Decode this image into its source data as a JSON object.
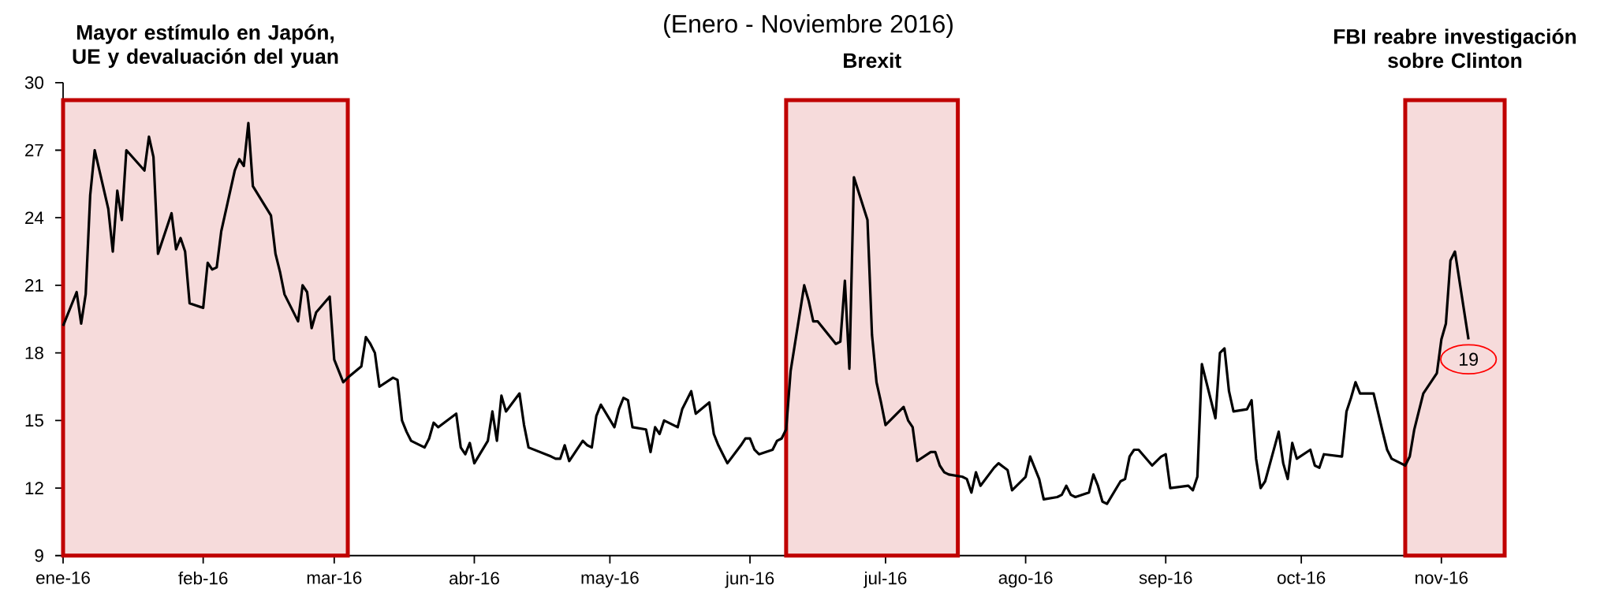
{
  "chart_data": {
    "type": "line",
    "subtitle": "(Enero - Noviembre 2016)",
    "x": [
      "2016-01-01",
      "2016-01-04",
      "2016-01-05",
      "2016-01-06",
      "2016-01-07",
      "2016-01-08",
      "2016-01-11",
      "2016-01-12",
      "2016-01-13",
      "2016-01-14",
      "2016-01-15",
      "2016-01-19",
      "2016-01-20",
      "2016-01-21",
      "2016-01-22",
      "2016-01-25",
      "2016-01-26",
      "2016-01-27",
      "2016-01-28",
      "2016-01-29",
      "2016-02-01",
      "2016-02-02",
      "2016-02-03",
      "2016-02-04",
      "2016-02-05",
      "2016-02-08",
      "2016-02-09",
      "2016-02-10",
      "2016-02-11",
      "2016-02-12",
      "2016-02-16",
      "2016-02-17",
      "2016-02-18",
      "2016-02-19",
      "2016-02-22",
      "2016-02-23",
      "2016-02-24",
      "2016-02-25",
      "2016-02-26",
      "2016-02-29",
      "2016-03-01",
      "2016-03-02",
      "2016-03-03",
      "2016-03-04",
      "2016-03-07",
      "2016-03-08",
      "2016-03-09",
      "2016-03-10",
      "2016-03-11",
      "2016-03-14",
      "2016-03-15",
      "2016-03-16",
      "2016-03-17",
      "2016-03-18",
      "2016-03-21",
      "2016-03-22",
      "2016-03-23",
      "2016-03-24",
      "2016-03-28",
      "2016-03-29",
      "2016-03-30",
      "2016-03-31",
      "2016-04-01",
      "2016-04-04",
      "2016-04-05",
      "2016-04-06",
      "2016-04-07",
      "2016-04-08",
      "2016-04-11",
      "2016-04-12",
      "2016-04-13",
      "2016-04-18",
      "2016-04-19",
      "2016-04-20",
      "2016-04-21",
      "2016-04-22",
      "2016-04-25",
      "2016-04-26",
      "2016-04-27",
      "2016-04-28",
      "2016-04-29",
      "2016-05-02",
      "2016-05-03",
      "2016-05-04",
      "2016-05-05",
      "2016-05-06",
      "2016-05-09",
      "2016-05-10",
      "2016-05-11",
      "2016-05-12",
      "2016-05-13",
      "2016-05-16",
      "2016-05-17",
      "2016-05-19",
      "2016-05-20",
      "2016-05-23",
      "2016-05-24",
      "2016-05-25",
      "2016-05-26",
      "2016-05-27",
      "2016-05-30",
      "2016-05-31",
      "2016-06-01",
      "2016-06-02",
      "2016-06-03",
      "2016-06-06",
      "2016-06-07",
      "2016-06-08",
      "2016-06-09",
      "2016-06-10",
      "2016-06-13",
      "2016-06-14",
      "2016-06-15",
      "2016-06-16",
      "2016-06-20",
      "2016-06-21",
      "2016-06-22",
      "2016-06-23",
      "2016-06-24",
      "2016-06-27",
      "2016-06-28",
      "2016-06-29",
      "2016-06-30",
      "2016-07-01",
      "2016-07-05",
      "2016-07-06",
      "2016-07-07",
      "2016-07-08",
      "2016-07-11",
      "2016-07-12",
      "2016-07-13",
      "2016-07-14",
      "2016-07-15",
      "2016-07-18",
      "2016-07-19",
      "2016-07-20",
      "2016-07-21",
      "2016-07-22",
      "2016-07-25",
      "2016-07-26",
      "2016-07-28",
      "2016-07-29",
      "2016-08-01",
      "2016-08-02",
      "2016-08-04",
      "2016-08-05",
      "2016-08-08",
      "2016-08-09",
      "2016-08-10",
      "2016-08-11",
      "2016-08-12",
      "2016-08-15",
      "2016-08-16",
      "2016-08-17",
      "2016-08-18",
      "2016-08-19",
      "2016-08-22",
      "2016-08-23",
      "2016-08-24",
      "2016-08-25",
      "2016-08-26",
      "2016-08-29",
      "2016-08-30",
      "2016-08-31",
      "2016-09-01",
      "2016-09-02",
      "2016-09-06",
      "2016-09-07",
      "2016-09-08",
      "2016-09-09",
      "2016-09-12",
      "2016-09-13",
      "2016-09-14",
      "2016-09-15",
      "2016-09-16",
      "2016-09-19",
      "2016-09-20",
      "2016-09-21",
      "2016-09-22",
      "2016-09-23",
      "2016-09-26",
      "2016-09-27",
      "2016-09-28",
      "2016-09-29",
      "2016-09-30",
      "2016-10-03",
      "2016-10-04",
      "2016-10-05",
      "2016-10-06",
      "2016-10-10",
      "2016-10-11",
      "2016-10-12",
      "2016-10-13",
      "2016-10-14",
      "2016-10-17",
      "2016-10-19",
      "2016-10-20",
      "2016-10-21",
      "2016-10-24",
      "2016-10-25",
      "2016-10-26",
      "2016-10-27",
      "2016-10-28",
      "2016-10-31",
      "2016-11-01",
      "2016-11-02",
      "2016-11-03",
      "2016-11-04",
      "2016-11-07"
    ],
    "series": [
      {
        "color": "#000000",
        "values": [
          19.2,
          20.7,
          19.3,
          20.6,
          25.0,
          27.0,
          24.4,
          22.5,
          25.2,
          23.9,
          27.0,
          26.1,
          27.6,
          26.7,
          22.4,
          24.2,
          22.6,
          23.1,
          22.5,
          20.2,
          20.0,
          22.0,
          21.7,
          21.8,
          23.4,
          26.1,
          26.6,
          26.3,
          28.2,
          25.4,
          24.1,
          22.4,
          21.6,
          20.6,
          19.4,
          21.0,
          20.7,
          19.1,
          19.8,
          20.5,
          17.7,
          17.2,
          16.7,
          16.9,
          17.4,
          18.7,
          18.4,
          18.0,
          16.5,
          16.9,
          16.8,
          15.0,
          14.5,
          14.1,
          13.8,
          14.2,
          14.9,
          14.7,
          15.3,
          13.8,
          13.5,
          14.0,
          13.1,
          14.1,
          15.4,
          14.1,
          16.1,
          15.4,
          16.2,
          14.8,
          13.8,
          13.4,
          13.3,
          13.3,
          13.9,
          13.2,
          14.1,
          13.9,
          13.8,
          15.2,
          15.7,
          14.7,
          15.5,
          16.0,
          15.9,
          14.7,
          14.6,
          13.6,
          14.7,
          14.4,
          15.0,
          14.7,
          15.5,
          16.3,
          15.3,
          15.8,
          14.4,
          13.9,
          13.5,
          13.1,
          13.9,
          14.2,
          14.2,
          13.7,
          13.5,
          13.7,
          14.1,
          14.2,
          14.6,
          17.2,
          21.0,
          20.3,
          19.4,
          19.4,
          18.4,
          18.5,
          21.2,
          17.3,
          25.8,
          23.9,
          18.8,
          16.7,
          15.8,
          14.8,
          15.6,
          15.0,
          14.7,
          13.2,
          13.6,
          13.6,
          13.0,
          12.7,
          12.6,
          12.5,
          12.4,
          11.8,
          12.7,
          12.1,
          12.9,
          13.1,
          12.8,
          11.9,
          12.5,
          13.4,
          12.4,
          11.5,
          11.6,
          11.7,
          12.1,
          11.7,
          11.6,
          11.8,
          12.6,
          12.1,
          11.4,
          11.3,
          12.3,
          12.4,
          13.4,
          13.7,
          13.7,
          13.0,
          13.2,
          13.4,
          13.5,
          12.0,
          12.1,
          11.9,
          12.5,
          17.5,
          15.1,
          18.0,
          18.2,
          16.3,
          15.4,
          15.5,
          15.9,
          13.3,
          12.0,
          12.3,
          14.5,
          13.1,
          12.4,
          14.0,
          13.3,
          13.7,
          13.0,
          12.9,
          13.5,
          13.4,
          15.4,
          16.0,
          16.7,
          16.2,
          16.2,
          14.5,
          13.7,
          13.3,
          13.0,
          13.4,
          14.6,
          15.4,
          16.2,
          17.1,
          18.6,
          19.3,
          22.1,
          22.5,
          18.6
        ]
      }
    ],
    "xlim": [
      "2016-01-01",
      "2016-11-15"
    ],
    "xticks": [
      {
        "value": "2016-01-01",
        "label": "ene-16"
      },
      {
        "value": "2016-02-01",
        "label": "feb-16"
      },
      {
        "value": "2016-03-01",
        "label": "mar-16"
      },
      {
        "value": "2016-04-01",
        "label": "abr-16"
      },
      {
        "value": "2016-05-01",
        "label": "may-16"
      },
      {
        "value": "2016-06-01",
        "label": "jun-16"
      },
      {
        "value": "2016-07-01",
        "label": "jul-16"
      },
      {
        "value": "2016-08-01",
        "label": "ago-16"
      },
      {
        "value": "2016-09-01",
        "label": "sep-16"
      },
      {
        "value": "2016-10-01",
        "label": "oct-16"
      },
      {
        "value": "2016-11-01",
        "label": "nov-16"
      }
    ],
    "ylim": [
      9,
      30
    ],
    "yticks": [
      9,
      12,
      15,
      18,
      21,
      24,
      27,
      30
    ],
    "bands": [
      {
        "axis": "x",
        "from": "2016-01-01",
        "to": "2016-03-04",
        "label": "Mayor estímulo en Japón, UE y  devaluación del yuan",
        "color": "#c00000"
      },
      {
        "axis": "x",
        "from": "2016-06-09",
        "to": "2016-07-17",
        "label": "Brexit",
        "color": "#c00000"
      },
      {
        "axis": "x",
        "from": "2016-10-24",
        "to": "2016-11-15",
        "label": "FBI reabre investigación sobre Clinton",
        "color": "#c00000"
      }
    ],
    "annotations": [
      {
        "text": "19",
        "x": "2016-11-07",
        "y": 18.6
      }
    ]
  }
}
